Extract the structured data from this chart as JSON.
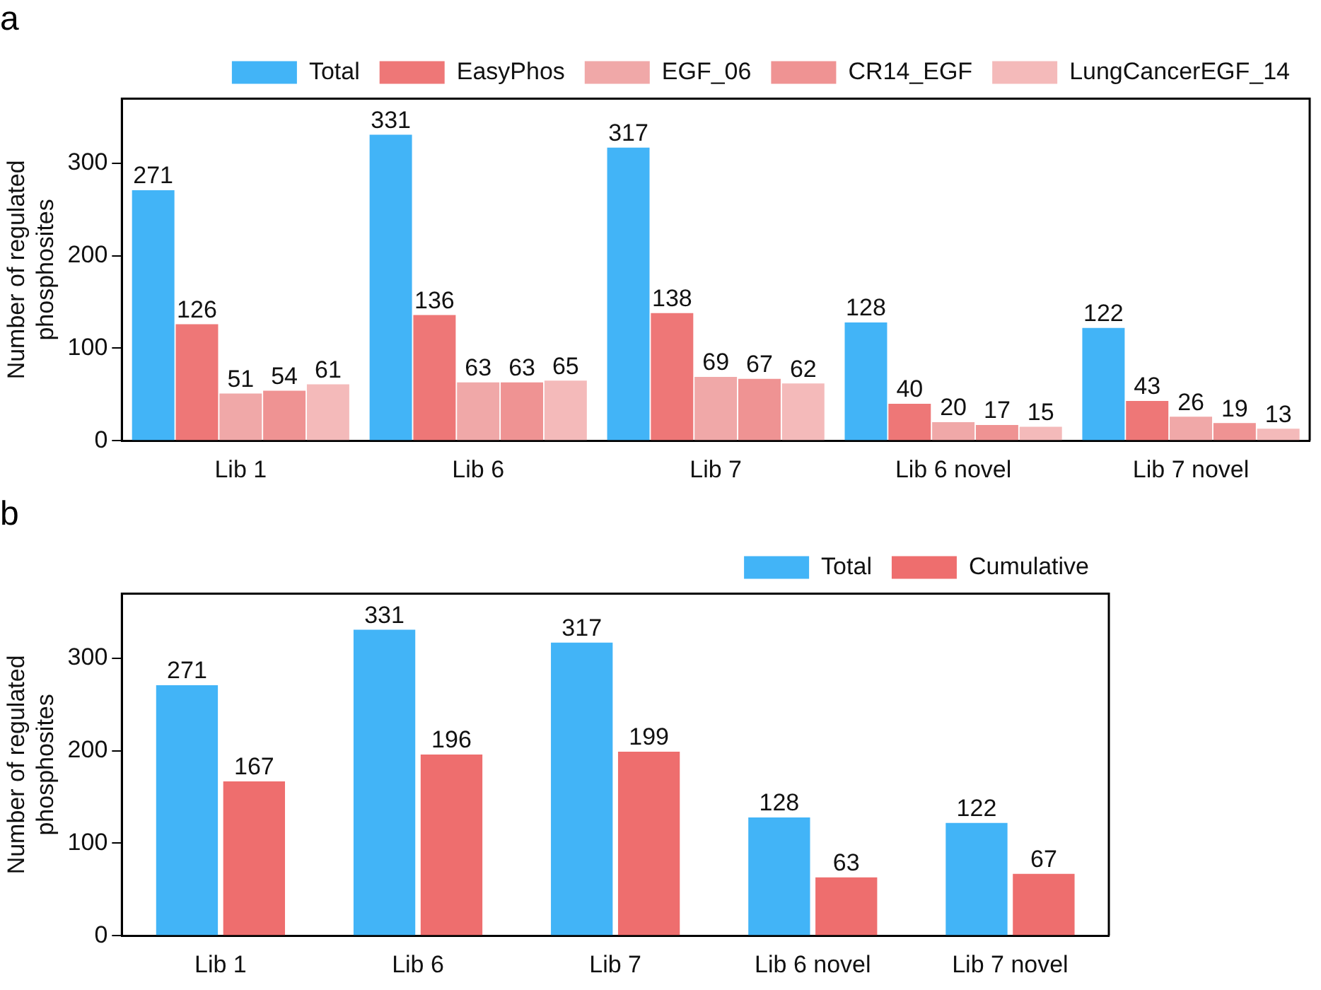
{
  "chart_data": [
    {
      "type": "bar",
      "title": "a",
      "ylabel": "Number of regulated phosphosites",
      "categories": [
        "Lib 1",
        "Lib 6",
        "Lib 7",
        "Lib 6 novel",
        "Lib 7 novel"
      ],
      "series": [
        {
          "name": "Total",
          "color": "#42b4f7",
          "values": [
            271,
            331,
            317,
            128,
            122
          ]
        },
        {
          "name": "EasyPhos",
          "color": "#ee7777",
          "values": [
            126,
            136,
            138,
            40,
            43
          ]
        },
        {
          "name": "EGF_06",
          "color": "#f0a8a8",
          "values": [
            51,
            63,
            69,
            20,
            26
          ]
        },
        {
          "name": "CR14_EGF",
          "color": "#ef9393",
          "values": [
            54,
            63,
            67,
            17,
            19
          ]
        },
        {
          "name": "LungCancerEGF_14",
          "color": "#f4baba",
          "values": [
            61,
            65,
            62,
            15,
            13
          ]
        }
      ],
      "ylim": [
        0,
        370
      ],
      "yticks": [
        0,
        100,
        200,
        300
      ],
      "grid": false,
      "legend": "top right",
      "data_labels": true
    },
    {
      "type": "bar",
      "title": "b",
      "ylabel": "Number of regulated phosphosites",
      "categories": [
        "Lib 1",
        "Lib 6",
        "Lib 7",
        "Lib 6 novel",
        "Lib 7 novel"
      ],
      "series": [
        {
          "name": "Total",
          "color": "#42b4f7",
          "values": [
            271,
            331,
            317,
            128,
            122
          ]
        },
        {
          "name": "Cumulative",
          "color": "#ee6e6e",
          "values": [
            167,
            196,
            199,
            63,
            67
          ]
        }
      ],
      "ylim": [
        0,
        370
      ],
      "yticks": [
        0,
        100,
        200,
        300
      ],
      "grid": false,
      "legend": "top right",
      "data_labels": true
    }
  ]
}
